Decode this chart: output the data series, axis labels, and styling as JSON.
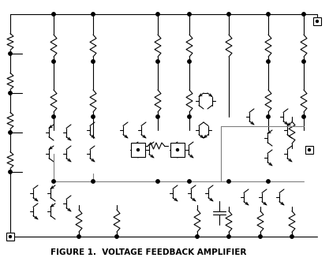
{
  "title": "FIGURE 1.  VOLTAGE FEEDBACK AMPLIFIER",
  "title_fontsize": 7.5,
  "bg_color": "#ffffff",
  "line_color": "#000000",
  "gray_color": "#7f7f7f",
  "fig_width": 4.17,
  "fig_height": 3.36,
  "dpi": 100
}
